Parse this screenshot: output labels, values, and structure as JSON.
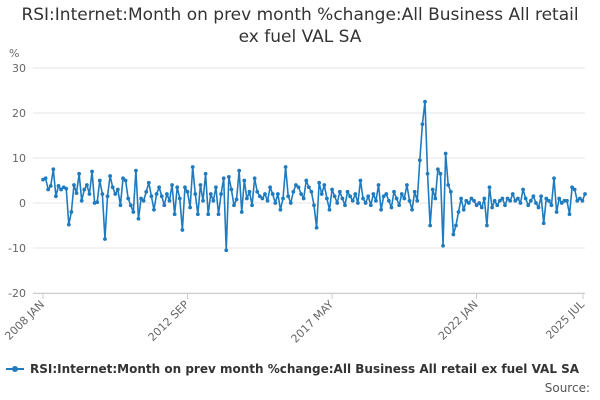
{
  "title": "RSI:Internet:Month on prev month %change:All Business All retail ex fuel VAL SA",
  "source_label": "Source:",
  "colors": {
    "series": "#1f7bbf",
    "grid": "#e6e6e6",
    "axis_text": "#666666"
  },
  "chart_data": {
    "type": "line",
    "title": "RSI:Internet:Month on prev month %change:All Business All retail ex fuel VAL SA",
    "ylabel": "%",
    "xlabel": "",
    "ylim": [
      -20,
      30
    ],
    "yticks": [
      -20,
      -10,
      0,
      10,
      20,
      30
    ],
    "grid": true,
    "legend_position": "bottom",
    "x_start": "2008-01",
    "x_end": "2025-07",
    "xticks": [
      {
        "label": "2008 JAN",
        "date": "2008-01"
      },
      {
        "label": "2012 SEP",
        "date": "2012-09"
      },
      {
        "label": "2017 MAY",
        "date": "2017-05"
      },
      {
        "label": "2022 JAN",
        "date": "2022-01"
      },
      {
        "label": "2025 JUL",
        "date": "2025-07"
      }
    ],
    "series": [
      {
        "name": "RSI:Internet:Month on prev month %change:All Business All retail ex fuel VAL SA",
        "marker": "circle",
        "points": [
          [
            "2008-01",
            5.2
          ],
          [
            "2008-02",
            5.5
          ],
          [
            "2008-03",
            3.0
          ],
          [
            "2008-04",
            3.8
          ],
          [
            "2008-05",
            7.5
          ],
          [
            "2008-06",
            1.5
          ],
          [
            "2008-07",
            3.8
          ],
          [
            "2008-08",
            3.0
          ],
          [
            "2008-09",
            3.5
          ],
          [
            "2008-10",
            3.2
          ],
          [
            "2008-11",
            -4.8
          ],
          [
            "2008-12",
            -2.0
          ],
          [
            "2009-01",
            4.0
          ],
          [
            "2009-02",
            2.2
          ],
          [
            "2009-03",
            6.5
          ],
          [
            "2009-04",
            0.5
          ],
          [
            "2009-05",
            3.0
          ],
          [
            "2009-06",
            4.0
          ],
          [
            "2009-07",
            2.0
          ],
          [
            "2009-08",
            7.0
          ],
          [
            "2009-09",
            0.0
          ],
          [
            "2009-10",
            0.2
          ],
          [
            "2009-11",
            5.0
          ],
          [
            "2009-12",
            2.0
          ],
          [
            "2010-01",
            -8.0
          ],
          [
            "2010-02",
            1.5
          ],
          [
            "2010-03",
            6.0
          ],
          [
            "2010-04",
            3.5
          ],
          [
            "2010-05",
            2.0
          ],
          [
            "2010-06",
            3.0
          ],
          [
            "2010-07",
            -0.5
          ],
          [
            "2010-08",
            5.5
          ],
          [
            "2010-09",
            5.0
          ],
          [
            "2010-10",
            1.0
          ],
          [
            "2010-11",
            -0.5
          ],
          [
            "2010-12",
            -2.0
          ],
          [
            "2011-01",
            7.2
          ],
          [
            "2011-02",
            -3.5
          ],
          [
            "2011-03",
            1.0
          ],
          [
            "2011-04",
            0.5
          ],
          [
            "2011-05",
            2.5
          ],
          [
            "2011-06",
            4.5
          ],
          [
            "2011-07",
            1.5
          ],
          [
            "2011-08",
            -1.5
          ],
          [
            "2011-09",
            2.0
          ],
          [
            "2011-10",
            3.5
          ],
          [
            "2011-11",
            1.5
          ],
          [
            "2011-12",
            -0.5
          ],
          [
            "2012-01",
            2.0
          ],
          [
            "2012-02",
            0.5
          ],
          [
            "2012-03",
            4.0
          ],
          [
            "2012-04",
            -2.5
          ],
          [
            "2012-05",
            3.5
          ],
          [
            "2012-06",
            1.0
          ],
          [
            "2012-07",
            -6.0
          ],
          [
            "2012-08",
            3.5
          ],
          [
            "2012-09",
            2.5
          ],
          [
            "2012-10",
            -1.0
          ],
          [
            "2012-11",
            8.0
          ],
          [
            "2012-12",
            2.0
          ],
          [
            "2013-01",
            -2.5
          ],
          [
            "2013-02",
            4.0
          ],
          [
            "2013-03",
            0.5
          ],
          [
            "2013-04",
            6.5
          ],
          [
            "2013-05",
            -2.5
          ],
          [
            "2013-06",
            2.0
          ],
          [
            "2013-07",
            0.5
          ],
          [
            "2013-08",
            3.5
          ],
          [
            "2013-09",
            -2.5
          ],
          [
            "2013-10",
            2.0
          ],
          [
            "2013-11",
            5.5
          ],
          [
            "2013-12",
            -10.5
          ],
          [
            "2014-01",
            5.8
          ],
          [
            "2014-02",
            3.0
          ],
          [
            "2014-03",
            -0.5
          ],
          [
            "2014-04",
            0.8
          ],
          [
            "2014-05",
            7.2
          ],
          [
            "2014-06",
            -2.0
          ],
          [
            "2014-07",
            5.0
          ],
          [
            "2014-08",
            1.0
          ],
          [
            "2014-09",
            2.5
          ],
          [
            "2014-10",
            -0.5
          ],
          [
            "2014-11",
            5.5
          ],
          [
            "2014-12",
            2.5
          ],
          [
            "2015-01",
            1.5
          ],
          [
            "2015-02",
            1.0
          ],
          [
            "2015-03",
            2.0
          ],
          [
            "2015-04",
            0.5
          ],
          [
            "2015-05",
            3.5
          ],
          [
            "2015-06",
            2.0
          ],
          [
            "2015-07",
            0.0
          ],
          [
            "2015-08",
            2.0
          ],
          [
            "2015-09",
            -1.5
          ],
          [
            "2015-10",
            1.0
          ],
          [
            "2015-11",
            8.0
          ],
          [
            "2015-12",
            1.5
          ],
          [
            "2016-01",
            0.0
          ],
          [
            "2016-02",
            2.5
          ],
          [
            "2016-03",
            4.0
          ],
          [
            "2016-04",
            3.5
          ],
          [
            "2016-05",
            2.0
          ],
          [
            "2016-06",
            1.0
          ],
          [
            "2016-07",
            5.0
          ],
          [
            "2016-08",
            3.5
          ],
          [
            "2016-09",
            2.5
          ],
          [
            "2016-10",
            -0.5
          ],
          [
            "2016-11",
            -5.5
          ],
          [
            "2016-12",
            4.5
          ],
          [
            "2017-01",
            2.0
          ],
          [
            "2017-02",
            4.0
          ],
          [
            "2017-03",
            1.0
          ],
          [
            "2017-04",
            -1.5
          ],
          [
            "2017-05",
            3.0
          ],
          [
            "2017-06",
            1.5
          ],
          [
            "2017-07",
            0.0
          ],
          [
            "2017-08",
            2.5
          ],
          [
            "2017-09",
            1.0
          ],
          [
            "2017-10",
            -0.5
          ],
          [
            "2017-11",
            2.5
          ],
          [
            "2017-12",
            1.5
          ],
          [
            "2018-01",
            0.5
          ],
          [
            "2018-02",
            2.0
          ],
          [
            "2018-03",
            0.0
          ],
          [
            "2018-04",
            5.0
          ],
          [
            "2018-05",
            1.0
          ],
          [
            "2018-06",
            0.0
          ],
          [
            "2018-07",
            1.5
          ],
          [
            "2018-08",
            -0.5
          ],
          [
            "2018-09",
            2.0
          ],
          [
            "2018-10",
            0.5
          ],
          [
            "2018-11",
            4.0
          ],
          [
            "2018-12",
            -1.5
          ],
          [
            "2019-01",
            1.5
          ],
          [
            "2019-02",
            2.0
          ],
          [
            "2019-03",
            0.5
          ],
          [
            "2019-04",
            -1.0
          ],
          [
            "2019-05",
            2.5
          ],
          [
            "2019-06",
            1.0
          ],
          [
            "2019-07",
            -0.5
          ],
          [
            "2019-08",
            2.0
          ],
          [
            "2019-09",
            1.0
          ],
          [
            "2019-10",
            4.0
          ],
          [
            "2019-11",
            0.5
          ],
          [
            "2019-12",
            -1.5
          ],
          [
            "2020-01",
            2.5
          ],
          [
            "2020-02",
            0.5
          ],
          [
            "2020-03",
            9.5
          ],
          [
            "2020-04",
            17.5
          ],
          [
            "2020-05",
            22.5
          ],
          [
            "2020-06",
            6.5
          ],
          [
            "2020-07",
            -5.0
          ],
          [
            "2020-08",
            3.0
          ],
          [
            "2020-09",
            1.0
          ],
          [
            "2020-10",
            7.5
          ],
          [
            "2020-11",
            6.5
          ],
          [
            "2020-12",
            -9.5
          ],
          [
            "2021-01",
            11.0
          ],
          [
            "2021-02",
            4.0
          ],
          [
            "2021-03",
            2.5
          ],
          [
            "2021-04",
            -7.0
          ],
          [
            "2021-05",
            -5.0
          ],
          [
            "2021-06",
            -2.0
          ],
          [
            "2021-07",
            1.0
          ],
          [
            "2021-08",
            -1.5
          ],
          [
            "2021-09",
            0.5
          ],
          [
            "2021-10",
            0.0
          ],
          [
            "2021-11",
            1.0
          ],
          [
            "2021-12",
            0.5
          ],
          [
            "2022-01",
            -0.5
          ],
          [
            "2022-02",
            0.0
          ],
          [
            "2022-03",
            -1.0
          ],
          [
            "2022-04",
            1.0
          ],
          [
            "2022-05",
            -5.0
          ],
          [
            "2022-06",
            3.5
          ],
          [
            "2022-07",
            -1.0
          ],
          [
            "2022-08",
            0.5
          ],
          [
            "2022-09",
            -0.5
          ],
          [
            "2022-10",
            0.5
          ],
          [
            "2022-11",
            1.0
          ],
          [
            "2022-12",
            -0.5
          ],
          [
            "2023-01",
            1.0
          ],
          [
            "2023-02",
            0.5
          ],
          [
            "2023-03",
            2.0
          ],
          [
            "2023-04",
            0.5
          ],
          [
            "2023-05",
            1.0
          ],
          [
            "2023-06",
            0.0
          ],
          [
            "2023-07",
            3.0
          ],
          [
            "2023-08",
            1.0
          ],
          [
            "2023-09",
            -0.5
          ],
          [
            "2023-10",
            0.5
          ],
          [
            "2023-11",
            1.5
          ],
          [
            "2023-12",
            0.0
          ],
          [
            "2024-01",
            -1.0
          ],
          [
            "2024-02",
            1.5
          ],
          [
            "2024-03",
            -4.5
          ],
          [
            "2024-04",
            1.0
          ],
          [
            "2024-05",
            0.5
          ],
          [
            "2024-06",
            -0.5
          ],
          [
            "2024-07",
            5.5
          ],
          [
            "2024-08",
            -2.0
          ],
          [
            "2024-09",
            1.0
          ],
          [
            "2024-10",
            0.0
          ],
          [
            "2024-11",
            0.5
          ],
          [
            "2024-12",
            0.5
          ],
          [
            "2025-01",
            -2.5
          ],
          [
            "2025-02",
            3.5
          ],
          [
            "2025-03",
            3.0
          ],
          [
            "2025-04",
            0.5
          ],
          [
            "2025-05",
            1.0
          ],
          [
            "2025-06",
            0.5
          ],
          [
            "2025-07",
            2.0
          ]
        ]
      }
    ]
  }
}
